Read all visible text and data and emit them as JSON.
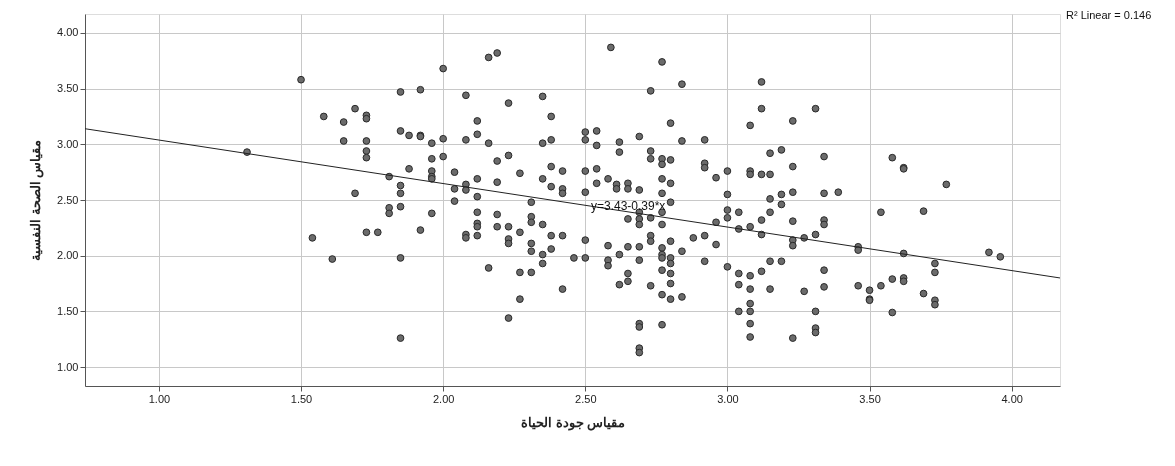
{
  "chart_data": {
    "type": "scatter",
    "xlabel": "مقياس جودة الحياة",
    "ylabel": "مقياس الصحة النفسية",
    "xlim": [
      0.74,
      4.17
    ],
    "ylim": [
      0.83,
      4.17
    ],
    "xticks": [
      {
        "value": 1,
        "label": "1.00"
      },
      {
        "value": 1.5,
        "label": "1.50"
      },
      {
        "value": 2,
        "label": "2.00"
      },
      {
        "value": 2.5,
        "label": "2.50"
      },
      {
        "value": 3,
        "label": "3.00"
      },
      {
        "value": 3.5,
        "label": "3.50"
      },
      {
        "value": 4,
        "label": "4.00"
      }
    ],
    "yticks": [
      {
        "value": 1,
        "label": "1.00"
      },
      {
        "value": 1.5,
        "label": "1.50"
      },
      {
        "value": 2,
        "label": "2.00"
      },
      {
        "value": 2.5,
        "label": "2.50"
      },
      {
        "value": 3,
        "label": "3.00"
      },
      {
        "value": 3.5,
        "label": "3.50"
      },
      {
        "value": 4,
        "label": "4.00"
      }
    ],
    "grid": true,
    "annotations": [
      {
        "text": "y=3.43-0.39*x",
        "x": 2.52,
        "y": 2.45
      },
      "R² Linear = 0.146"
    ],
    "series": [
      {
        "color": "#6b6b6b",
        "marker": "circle",
        "x": [
          1.5,
          1.31,
          1.58,
          1.61,
          1.54,
          1.69,
          1.65,
          1.65,
          1.69,
          1.73,
          1.73,
          1.73,
          1.73,
          1.73,
          1.73,
          1.77,
          1.81,
          1.81,
          1.81,
          1.85,
          1.85,
          1.85,
          1.85,
          1.85,
          1.85,
          1.85,
          1.88,
          1.88,
          1.92,
          2.0,
          2.16,
          2.19,
          2.59,
          2.08,
          2.23,
          2.35,
          2.12,
          2.38,
          1.92,
          1.92,
          1.96,
          2.0,
          2.08,
          2.12,
          2.16,
          2.35,
          2.38,
          2.5,
          2.54,
          2.5,
          2.54,
          2.62,
          1.96,
          2.0,
          1.96,
          1.96,
          1.96,
          2.04,
          2.19,
          2.23,
          2.27,
          2.35,
          2.38,
          2.42,
          2.5,
          2.54,
          2.19,
          2.12,
          2.08,
          2.08,
          2.04,
          2.12,
          2.04,
          2.38,
          2.42,
          2.42,
          2.5,
          2.54,
          2.58,
          1.96,
          1.92,
          2.12,
          2.19,
          2.12,
          2.12,
          2.08,
          2.08,
          2.12,
          2.19,
          2.23,
          2.27,
          2.23,
          2.23,
          2.31,
          2.31,
          2.31,
          2.35,
          2.31,
          2.31,
          2.35,
          2.35,
          2.38,
          2.38,
          2.42,
          2.46,
          2.5,
          2.5,
          2.16,
          2.27,
          2.31,
          2.42,
          2.27,
          2.23,
          2.58,
          2.62,
          2.58,
          2.58,
          2.62,
          2.77,
          2.84,
          2.73,
          2.8,
          2.69,
          2.84,
          2.92,
          2.62,
          2.73,
          2.73,
          2.77,
          2.77,
          2.8,
          2.92,
          2.92,
          2.96,
          3.0,
          3.08,
          3.12,
          3.12,
          3.23,
          3.31,
          3.08,
          3.08,
          3.12,
          3.15,
          3.15,
          3.19,
          3.23,
          3.34,
          2.61,
          2.61,
          2.65,
          2.65,
          2.69,
          2.77,
          2.8,
          2.77,
          2.8,
          3.0,
          3.15,
          3.19,
          3.19,
          3.23,
          3.34,
          2.65,
          2.69,
          2.69,
          2.69,
          2.73,
          2.77,
          2.77,
          2.96,
          3.0,
          3.0,
          3.04,
          3.04,
          3.08,
          3.12,
          3.12,
          3.15,
          3.23,
          3.23,
          3.23,
          3.27,
          3.31,
          3.34,
          3.34,
          2.65,
          2.69,
          2.73,
          2.73,
          2.77,
          2.77,
          2.77,
          2.8,
          2.8,
          2.8,
          2.84,
          2.88,
          2.92,
          2.96,
          2.69,
          2.92,
          3.0,
          3.04,
          3.08,
          3.12,
          3.15,
          3.19,
          2.65,
          2.65,
          2.73,
          2.8,
          2.8,
          2.77,
          2.77,
          2.8,
          2.84,
          3.04,
          3.08,
          3.15,
          3.27,
          3.34,
          3.34,
          3.04,
          3.08,
          3.08,
          3.31,
          3.08,
          3.08,
          3.23,
          3.31,
          3.31,
          2.69,
          2.69,
          2.77,
          2.69,
          2.69,
          3.39,
          3.46,
          3.46,
          3.46,
          3.5,
          3.5,
          3.5,
          3.54,
          3.54,
          3.58,
          3.58,
          3.58,
          3.62,
          3.62,
          3.62,
          3.62,
          3.62,
          3.69,
          3.69,
          3.73,
          3.73,
          3.73,
          3.73,
          3.77,
          3.92,
          3.96
        ],
        "values": [
          3.58,
          2.93,
          3.25,
          1.97,
          2.16,
          3.32,
          3.2,
          3.03,
          2.56,
          3.26,
          3.23,
          3.03,
          2.94,
          2.88,
          2.21,
          2.21,
          2.71,
          2.43,
          2.38,
          3.47,
          3.12,
          2.63,
          2.56,
          2.44,
          1.98,
          1.26,
          3.08,
          2.78,
          3.49,
          3.68,
          3.78,
          3.82,
          3.87,
          3.44,
          3.37,
          3.43,
          3.21,
          3.25,
          3.08,
          3.07,
          3.01,
          3.05,
          3.04,
          3.09,
          3.01,
          3.01,
          3.04,
          3.11,
          3.12,
          3.04,
          2.99,
          3.02,
          2.87,
          2.89,
          2.76,
          2.71,
          2.69,
          2.75,
          2.85,
          2.9,
          2.74,
          2.69,
          2.8,
          2.76,
          2.76,
          2.78,
          2.66,
          2.69,
          2.64,
          2.59,
          2.6,
          2.53,
          2.49,
          2.62,
          2.6,
          2.56,
          2.57,
          2.65,
          2.69,
          2.38,
          2.23,
          2.39,
          2.37,
          2.29,
          2.26,
          2.19,
          2.16,
          2.18,
          2.26,
          2.26,
          2.21,
          2.15,
          2.11,
          2.48,
          2.35,
          2.3,
          2.28,
          2.11,
          2.04,
          2.01,
          1.93,
          2.06,
          2.18,
          2.18,
          1.98,
          1.98,
          2.14,
          1.89,
          1.85,
          1.85,
          1.7,
          1.61,
          1.44,
          2.09,
          2.01,
          1.96,
          1.91,
          1.74,
          3.74,
          3.54,
          3.48,
          3.19,
          3.07,
          3.03,
          3.04,
          2.93,
          2.94,
          2.87,
          2.87,
          2.82,
          2.86,
          2.83,
          2.79,
          2.7,
          2.76,
          3.17,
          3.32,
          3.56,
          3.21,
          3.32,
          2.76,
          2.73,
          2.73,
          2.73,
          2.92,
          2.95,
          2.8,
          2.89,
          2.64,
          2.6,
          2.65,
          2.6,
          2.59,
          2.69,
          2.65,
          2.56,
          2.48,
          2.55,
          2.51,
          2.55,
          2.46,
          2.57,
          2.56,
          2.33,
          2.39,
          2.33,
          2.28,
          2.34,
          2.39,
          2.28,
          2.3,
          2.41,
          2.34,
          2.39,
          2.24,
          2.26,
          2.32,
          2.19,
          2.39,
          2.31,
          2.14,
          2.09,
          2.16,
          2.19,
          2.32,
          2.28,
          2.08,
          2.08,
          2.18,
          2.13,
          2.07,
          2.01,
          1.98,
          2.13,
          1.98,
          1.93,
          2.04,
          2.16,
          2.18,
          2.1,
          1.96,
          1.95,
          1.9,
          1.84,
          1.82,
          1.86,
          1.95,
          1.95,
          1.84,
          1.77,
          1.73,
          1.84,
          1.75,
          1.87,
          1.65,
          1.61,
          1.63,
          1.74,
          1.7,
          1.7,
          1.68,
          1.87,
          1.72,
          1.5,
          1.5,
          1.57,
          1.5,
          1.39,
          1.27,
          1.26,
          1.35,
          1.31,
          1.39,
          1.36,
          1.38,
          1.17,
          1.13,
          2.57,
          2.08,
          2.05,
          1.73,
          1.69,
          1.61,
          1.6,
          2.39,
          1.73,
          2.88,
          1.79,
          1.49,
          2.79,
          2.78,
          2.02,
          1.8,
          1.77,
          2.4,
          1.66,
          1.93,
          1.85,
          1.6,
          1.56,
          2.64,
          2.03,
          1.99
        ]
      },
      {
        "type": "line",
        "marker": "none",
        "color": "#222222",
        "x": [
          0.74,
          4.17
        ],
        "values": [
          3.14,
          1.8
        ]
      }
    ]
  }
}
